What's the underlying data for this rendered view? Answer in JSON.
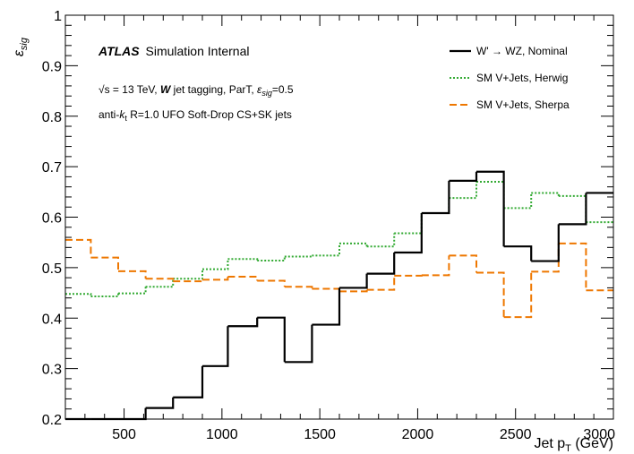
{
  "chart_data": {
    "type": "line",
    "title": "",
    "xlabel": "Jet p",
    "xlabel_sub": "T",
    "xlabel_unit": " (GeV)",
    "ylabel": "ε",
    "ylabel_sub": "sig",
    "xlim": [
      200,
      3000
    ],
    "ylim": [
      0.2,
      1.0
    ],
    "grid": false,
    "legend_position": "top-right",
    "x_ticks": [
      {
        "value": 500,
        "label": "500"
      },
      {
        "value": 1000,
        "label": "1000"
      },
      {
        "value": 1500,
        "label": "1500"
      },
      {
        "value": 2000,
        "label": "2000"
      },
      {
        "value": 2500,
        "label": "2500"
      },
      {
        "value": 3000,
        "label": "3000"
      }
    ],
    "y_ticks": [
      {
        "value": 0.2,
        "label": "0.2"
      },
      {
        "value": 0.3,
        "label": "0.3"
      },
      {
        "value": 0.4,
        "label": "0.4"
      },
      {
        "value": 0.5,
        "label": "0.5"
      },
      {
        "value": 0.6,
        "label": "0.6"
      },
      {
        "value": 0.7,
        "label": "0.7"
      },
      {
        "value": 0.8,
        "label": "0.8"
      },
      {
        "value": 0.9,
        "label": "0.9"
      },
      {
        "value": 1.0,
        "label": "1"
      }
    ],
    "bin_edges": [
      200,
      330,
      470,
      610,
      750,
      900,
      1030,
      1180,
      1320,
      1460,
      1600,
      1740,
      1880,
      2020,
      2160,
      2300,
      2440,
      2580,
      2720,
      2860,
      3000
    ],
    "series": [
      {
        "name": "W' → WZ, Nominal",
        "color": "#000000",
        "style": "solid",
        "values": [
          0.2,
          0.2,
          0.2,
          0.222,
          0.243,
          0.305,
          0.384,
          0.401,
          0.313,
          0.387,
          0.46,
          0.488,
          0.53,
          0.608,
          0.672,
          0.69,
          0.542,
          0.513,
          0.586,
          0.648
        ]
      },
      {
        "name": "SM V+Jets, Herwig",
        "color": "#33aa33",
        "style": "dotted",
        "values": [
          0.448,
          0.443,
          0.449,
          0.462,
          0.478,
          0.497,
          0.517,
          0.514,
          0.522,
          0.524,
          0.548,
          0.542,
          0.568,
          0.608,
          0.638,
          0.67,
          0.618,
          0.648,
          0.642,
          0.59
        ]
      },
      {
        "name": "SM V+Jets, Sherpa",
        "color": "#ee7700",
        "style": "dashed",
        "values": [
          0.555,
          0.52,
          0.493,
          0.478,
          0.473,
          0.476,
          0.482,
          0.474,
          0.462,
          0.458,
          0.453,
          0.456,
          0.484,
          0.485,
          0.524,
          0.49,
          0.402,
          0.492,
          0.548,
          0.455
        ]
      }
    ],
    "annotations": {
      "atlas": "ATLAS",
      "atlas_suffix": "Simulation Internal",
      "line2_sqrt": "√s",
      "line2_a": " = 13 TeV, ",
      "line2_w": "W",
      "line2_b": " jet tagging, ParT, ",
      "line2_eps": "ε",
      "line2_eps_sub": "sig",
      "line2_c": "=0.5",
      "line3_a": "anti-",
      "line3_k": "k",
      "line3_t": "t",
      "line3_b": " R=1.0 UFO Soft-Drop CS+SK jets"
    }
  }
}
